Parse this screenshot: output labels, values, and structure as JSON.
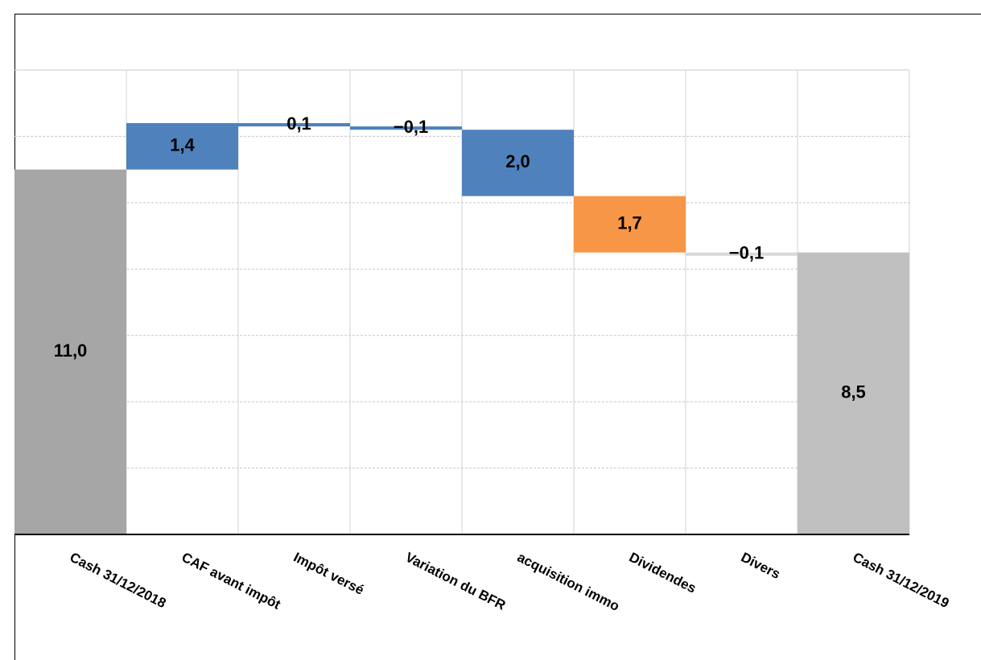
{
  "chart_data": {
    "type": "waterfall",
    "categories": [
      "Cash 31/12/2018",
      "CAF avant impôt",
      "Impôt versé",
      "Variation du BFR",
      "acquisition immo",
      "Dividendes",
      "Divers",
      "Cash 31/12/2019"
    ],
    "values": [
      11.0,
      1.4,
      -0.1,
      -0.1,
      -2.0,
      -1.7,
      -0.1,
      8.5
    ],
    "value_labels": [
      "11,0",
      "1,4",
      "0,1",
      "−0,1",
      "2,0",
      "1,7",
      "−0,1",
      "8,5"
    ],
    "measures": [
      "total",
      "relative",
      "relative",
      "relative",
      "relative",
      "relative",
      "relative",
      "total"
    ],
    "colors": [
      "#a6a6a6",
      "#4f81bd",
      "#4f81bd",
      "#4f81bd",
      "#4f81bd",
      "#f79646",
      "#d9d9d9",
      "#c0c0c0"
    ],
    "ylim": [
      0,
      14
    ],
    "yticks": [
      0,
      2,
      4,
      6,
      8,
      10,
      12,
      14
    ],
    "grid": true
  }
}
